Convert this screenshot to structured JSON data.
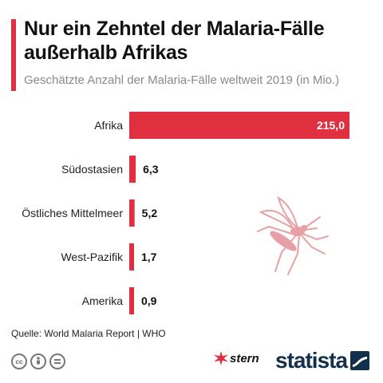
{
  "header": {
    "title": "Nur ein Zehntel der Malaria-Fälle außerhalb Afrikas",
    "subtitle": "Geschätzte Anzahl der Malaria-Fälle weltweit 2019 (in Mio.)"
  },
  "chart_data": {
    "type": "bar",
    "orientation": "horizontal",
    "title": "Nur ein Zehntel der Malaria-Fälle außerhalb Afrikas",
    "subtitle": "Geschätzte Anzahl der Malaria-Fälle weltweit 2019 (in Mio.)",
    "categories": [
      "Afrika",
      "Südostasien",
      "Östliches Mittelmeer",
      "West-Pazifik",
      "Amerika"
    ],
    "values": [
      215.0,
      6.3,
      5.2,
      1.7,
      0.9
    ],
    "value_labels": [
      "215,0",
      "6,3",
      "5,2",
      "1,7",
      "0,9"
    ],
    "xlim": [
      0,
      215
    ],
    "grid": false,
    "bar_color": "#e03040"
  },
  "footer": {
    "source": "Quelle: World Malaria Report | WHO",
    "brand_stern": "stern",
    "brand_statista": "statista"
  },
  "colors": {
    "accent": "#e03040",
    "mosquito": "#e8a0a6",
    "statista_navy": "#12304a"
  },
  "icons": {
    "decoration": "mosquito-icon",
    "license": [
      "cc-icon",
      "by-icon",
      "nd-icon"
    ]
  }
}
